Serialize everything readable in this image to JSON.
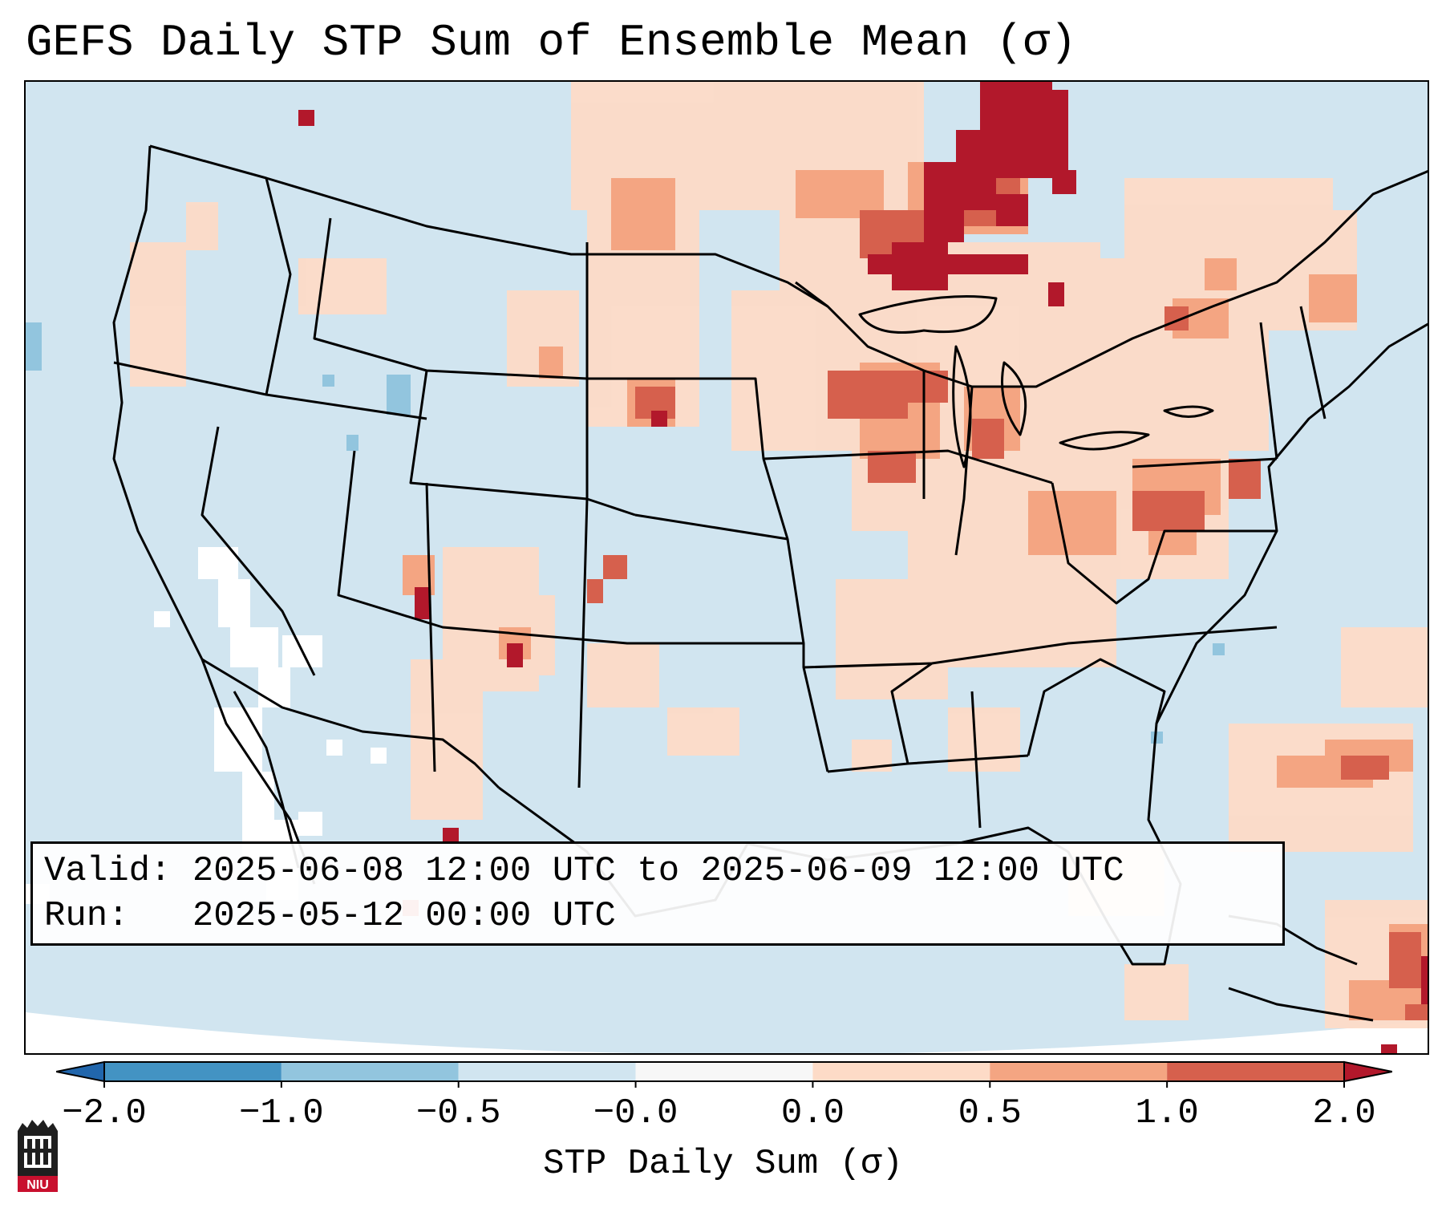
{
  "title": "GEFS Daily STP Sum of Ensemble Mean (σ)",
  "map": {
    "info_box": {
      "valid_line": "Valid: 2025-06-08 12:00 UTC to 2025-06-09 12:00 UTC",
      "run_line": "Run:   2025-05-12 00:00 UTC"
    },
    "colors": {
      "ocean_and_land_near_zero": "#d1e5f0",
      "missing_or_zero": "#ffffff",
      "level_0_0_5": "#fddbc7",
      "level_0_5_1": "#f4a582",
      "level_1_2": "#d6604d",
      "level_above_2": "#b2182b",
      "level_neg_0_5": "#92c5de",
      "level_neg_1": "#4393c3",
      "border": "#000000"
    },
    "anomaly_regions": [
      {
        "name": "Upper Midwest / Lake Superior",
        "level": "above 2.0"
      },
      {
        "name": "Ontario / Quebec",
        "level": "above 2.0"
      },
      {
        "name": "Wisconsin / Michigan",
        "level": "1.0 to 2.0"
      },
      {
        "name": "Pennsylvania / Ohio Valley",
        "level": "1.0 to 2.0"
      },
      {
        "name": "Northern Plains",
        "level": "0.5 to 2.0"
      },
      {
        "name": "Colorado / New Mexico",
        "level": "0.5 to 2.0"
      },
      {
        "name": "Western Atlantic",
        "level": "0.5 to 2.0"
      },
      {
        "name": "Caribbean",
        "level": "above 2.0"
      }
    ]
  },
  "colorbar": {
    "label": "STP Daily Sum (σ)",
    "ticks": [
      "−2.0",
      "−1.0",
      "−0.5",
      "−0.0",
      "0.0",
      "0.5",
      "1.0",
      "2.0"
    ],
    "bins": [
      {
        "color": "#4393c3"
      },
      {
        "color": "#92c5de"
      },
      {
        "color": "#d1e5f0"
      },
      {
        "color": "#f7f7f7"
      },
      {
        "color": "#fddbc7"
      },
      {
        "color": "#f4a582"
      },
      {
        "color": "#d6604d"
      }
    ],
    "extend_min_color": "#2166ac",
    "extend_max_color": "#b2182b"
  },
  "logo": {
    "text": "NIU"
  }
}
